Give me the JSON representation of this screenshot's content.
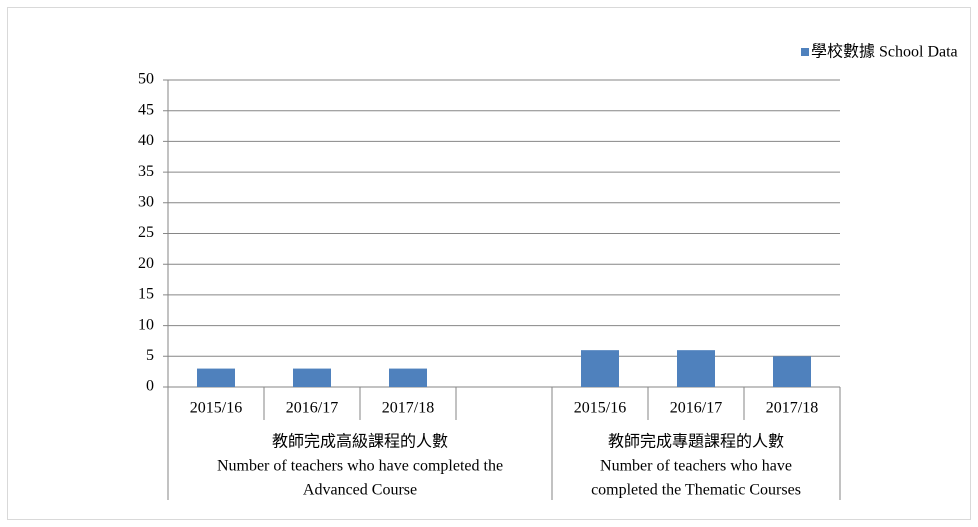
{
  "chart_data": {
    "type": "bar",
    "groups": [
      {
        "label": [
          "教師完成高級課程的人數",
          "Number of teachers who have completed the",
          "Advanced Course"
        ],
        "categories": [
          "2015/16",
          "2016/17",
          "2017/18",
          null
        ]
      },
      {
        "label": [
          "教師完成專題課程的人數",
          "Number of teachers who have",
          "completed the Thematic Courses"
        ],
        "categories": [
          "2015/16",
          "2016/17",
          "2017/18"
        ]
      }
    ],
    "series": [
      {
        "name": "學校數據 School Data",
        "color": "#4f81bd",
        "values": [
          3,
          3,
          3,
          null,
          6,
          6,
          5
        ]
      }
    ],
    "ylim": [
      0,
      50
    ],
    "yticks": [
      0,
      5,
      10,
      15,
      20,
      25,
      30,
      35,
      40,
      45,
      50
    ],
    "grid": true,
    "legend": "top-right"
  }
}
